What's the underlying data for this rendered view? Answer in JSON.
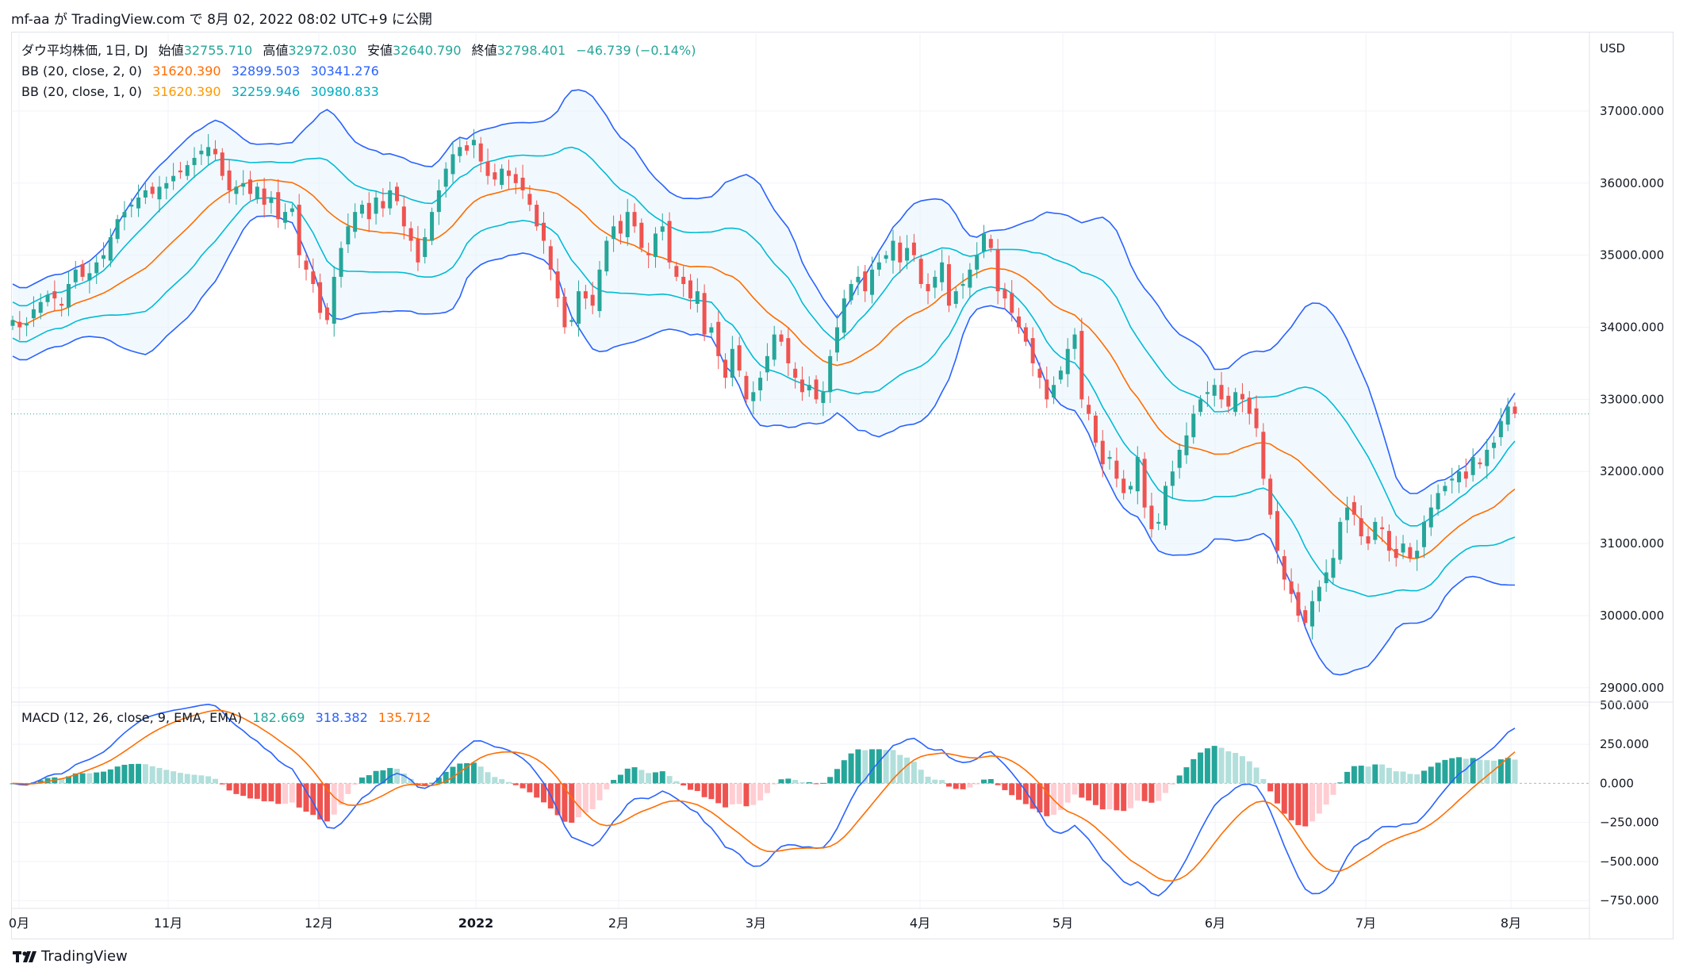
{
  "header": "mf-aa が TradingView.com で 8月 02, 2022 08:02 UTC+9 に公開",
  "currency": "USD",
  "brand": "TradingView",
  "legend": {
    "title": "ダウ平均株価, 1日, DJ",
    "o_label": "始値",
    "o_val": "32755.710",
    "h_label": "高値",
    "h_val": "32972.030",
    "l_label": "安値",
    "l_val": "32640.790",
    "c_label": "終値",
    "c_val": "32798.401",
    "change": "−46.739 (−0.14%)",
    "bb2": {
      "label": "BB (20, close, 2, 0)",
      "basis": "31620.390",
      "upper": "32899.503",
      "lower": "30341.276"
    },
    "bb1": {
      "label": "BB (20, close, 1, 0)",
      "basis": "31620.390",
      "upper": "32259.946",
      "lower": "30980.833"
    },
    "macd": {
      "label": "MACD (12, 26, close, 9, EMA, EMA)",
      "hist": "182.669",
      "macd": "318.382",
      "signal": "135.712"
    }
  },
  "colors": {
    "up": "#26a69a",
    "down": "#ef5350",
    "up_light": "#b2dfdb",
    "down_light": "#ffcdd2",
    "bb2_band": "#2962ff",
    "bb1_band": "#00bcd4",
    "basis": "#ff6d00",
    "macd_line": "#2962ff",
    "signal_line": "#ff6d00",
    "fill": "#e3f2fd",
    "text_muted": "#131722"
  },
  "chart_data": {
    "type": "candlestick",
    "title": "ダウ平均株価, 1日, DJ",
    "x_labels": [
      "0月",
      "11月",
      "12月",
      "2022",
      "2月",
      "3月",
      "4月",
      "5月",
      "6月",
      "7月",
      "8月"
    ],
    "y_ticks": [
      "37000.000",
      "36000.000",
      "35000.000",
      "34000.000",
      "33000.000",
      "32000.000",
      "31000.000",
      "30000.000",
      "29000.000"
    ],
    "y_range": [
      28800,
      38100
    ],
    "macd_ticks": [
      "500.000",
      "250.000",
      "0.000",
      "−250.000",
      "−500.000",
      "−750.000"
    ],
    "macd_range": [
      -800,
      520
    ],
    "last_close": 32798.4,
    "closes": [
      34100,
      34000,
      34050,
      34250,
      34350,
      34450,
      34400,
      34300,
      34600,
      34800,
      34700,
      34750,
      34900,
      35000,
      35250,
      35500,
      35600,
      35700,
      35800,
      35900,
      35850,
      35950,
      36000,
      36100,
      36150,
      36250,
      36350,
      36450,
      36500,
      36400,
      36100,
      35900,
      35950,
      36000,
      35850,
      35950,
      35700,
      35800,
      35500,
      35600,
      35650,
      35000,
      34800,
      34600,
      34200,
      34100,
      34700,
      35100,
      35400,
      35600,
      35700,
      35500,
      35800,
      35650,
      35900,
      35750,
      35400,
      35200,
      34900,
      35250,
      35600,
      35900,
      36200,
      36400,
      36500,
      36450,
      36600,
      36300,
      36100,
      36050,
      36200,
      36100,
      36000,
      35900,
      35700,
      35400,
      35200,
      34800,
      34400,
      34000,
      34100,
      34500,
      34400,
      34300,
      34800,
      35200,
      35400,
      35300,
      35600,
      35400,
      35100,
      35000,
      35300,
      35400,
      34900,
      34700,
      34600,
      34400,
      34500,
      33900,
      34000,
      33600,
      33300,
      33700,
      33400,
      33000,
      33100,
      33300,
      33600,
      33900,
      33800,
      33500,
      33300,
      33100,
      33200,
      33000,
      33100,
      33600,
      34000,
      34400,
      34600,
      34700,
      34500,
      34800,
      34900,
      35000,
      35200,
      34900,
      35100,
      35000,
      34600,
      34500,
      34700,
      34900,
      34300,
      34500,
      34600,
      34800,
      35000,
      35300,
      35100,
      34500,
      34400,
      34200,
      34000,
      33800,
      33500,
      33300,
      33000,
      33200,
      33400,
      33700,
      33900,
      33000,
      32800,
      32400,
      32100,
      32200,
      31900,
      31700,
      31800,
      32200,
      31500,
      31200,
      31300,
      31800,
      32000,
      32300,
      32500,
      32800,
      33000,
      33100,
      33200,
      33000,
      32900,
      33100,
      33000,
      32800,
      32600,
      31900,
      31400,
      30900,
      30500,
      30300,
      30000,
      29900,
      30200,
      30400,
      30600,
      30800,
      31300,
      31500,
      31400,
      31100,
      31000,
      31300,
      31200,
      30900,
      30800,
      31000,
      30800,
      30900,
      31300,
      31500,
      31700,
      31800,
      31900,
      32000,
      31900,
      32200,
      32100,
      32300,
      32400,
      32700,
      32900,
      32800
    ],
    "series": [
      {
        "name": "BB (20, close, 2, 0)",
        "kind": "band",
        "values": [
          "upper",
          "basis",
          "lower"
        ]
      },
      {
        "name": "BB (20, close, 1, 0)",
        "kind": "band",
        "values": [
          "upper",
          "basis",
          "lower"
        ]
      },
      {
        "name": "MACD (12, 26, close, 9, EMA, EMA)",
        "kind": "oscillator"
      }
    ]
  }
}
